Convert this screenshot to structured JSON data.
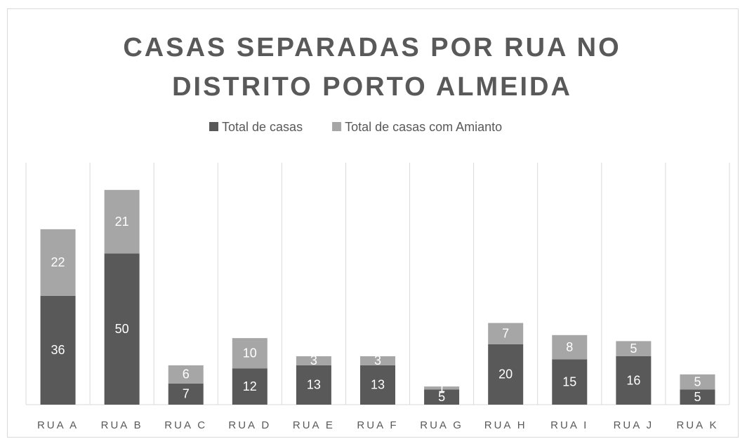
{
  "chart_data": {
    "type": "bar",
    "stacked": true,
    "title": "CASAS SEPARADAS POR RUA NO DISTRITO PORTO ALMEIDA",
    "categories": [
      "RUA A",
      "RUA B",
      "RUA C",
      "RUA D",
      "RUA E",
      "RUA F",
      "RUA G",
      "RUA H",
      "RUA I",
      "RUA J",
      "RUA K"
    ],
    "series": [
      {
        "name": "Total de casas",
        "color": "#595959",
        "values": [
          36,
          50,
          7,
          12,
          13,
          13,
          5,
          20,
          15,
          16,
          5
        ]
      },
      {
        "name": "Total de casas com Amianto",
        "color": "#a6a6a6",
        "values": [
          22,
          21,
          6,
          10,
          3,
          3,
          1,
          7,
          8,
          5,
          5
        ]
      }
    ],
    "ylim": [
      0,
      80
    ],
    "legend": "top"
  }
}
